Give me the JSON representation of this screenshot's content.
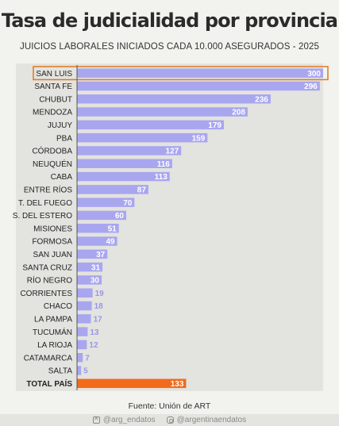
{
  "title": "Tasa de judicialidad por provincia",
  "subtitle": "JUICIOS LABORALES INICIADOS CADA 10.000 ASEGURADOS - 2025",
  "source": "Fuente: Unión de ART",
  "footer": {
    "twitter": "@arg_endatos",
    "instagram": "@argentinaendatos"
  },
  "colors": {
    "bar": "#a9a6f0",
    "total_bar": "#f26a1b",
    "highlight_border": "#e07a1f",
    "label_text": "#222222",
    "value_light": "#ffffff",
    "value_outside": "#9a96e8"
  },
  "chart_data": {
    "type": "bar",
    "orientation": "horizontal",
    "categories": [
      "SAN LUIS",
      "SANTA FE",
      "CHUBUT",
      "MENDOZA",
      "JUJUY",
      "PBA",
      "CÓRDOBA",
      "NEUQUÉN",
      "CABA",
      "ENTRE RÍOS",
      "T. DEL FUEGO",
      "S. DEL ESTERO",
      "MISIONES",
      "FORMOSA",
      "SAN JUAN",
      "SANTA CRUZ",
      "RÍO NEGRO",
      "CORRIENTES",
      "CHACO",
      "LA PAMPA",
      "TUCUMÁN",
      "LA RIOJA",
      "CATAMARCA",
      "SALTA",
      "TOTAL PAÍS"
    ],
    "values": [
      300,
      296,
      236,
      208,
      179,
      159,
      127,
      116,
      113,
      87,
      70,
      60,
      51,
      49,
      37,
      31,
      30,
      19,
      18,
      17,
      13,
      12,
      7,
      5,
      133
    ],
    "highlighted": "SAN LUIS",
    "total_category": "TOTAL PAÍS",
    "xlim": [
      0,
      300
    ],
    "grid": false,
    "legend": "none"
  }
}
